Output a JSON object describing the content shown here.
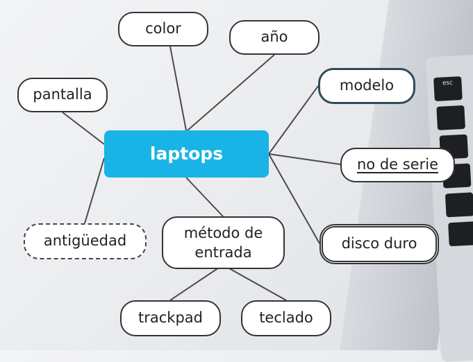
{
  "diagram": {
    "center": {
      "label": "laptops"
    },
    "nodes": [
      {
        "id": "color",
        "label": "color"
      },
      {
        "id": "ano",
        "label": "año"
      },
      {
        "id": "pantalla",
        "label": "pantalla"
      },
      {
        "id": "modelo",
        "label": "modelo"
      },
      {
        "id": "no-de-serie",
        "label": "no de serie"
      },
      {
        "id": "antiguedad",
        "label": "antigüedad"
      },
      {
        "id": "metodo-de-entrada",
        "label": "método de entrada"
      },
      {
        "id": "disco-duro",
        "label": "disco duro"
      },
      {
        "id": "trackpad",
        "label": "trackpad"
      },
      {
        "id": "teclado",
        "label": "teclado"
      }
    ],
    "edges": [
      [
        "center",
        "color"
      ],
      [
        "center",
        "ano"
      ],
      [
        "center",
        "pantalla"
      ],
      [
        "center",
        "modelo"
      ],
      [
        "center",
        "no-de-serie"
      ],
      [
        "center",
        "antiguedad"
      ],
      [
        "center",
        "metodo-de-entrada"
      ],
      [
        "center",
        "disco-duro"
      ],
      [
        "metodo-de-entrada",
        "trackpad"
      ],
      [
        "metodo-de-entrada",
        "teclado"
      ]
    ]
  },
  "laptop": {
    "key_label": "esc"
  }
}
